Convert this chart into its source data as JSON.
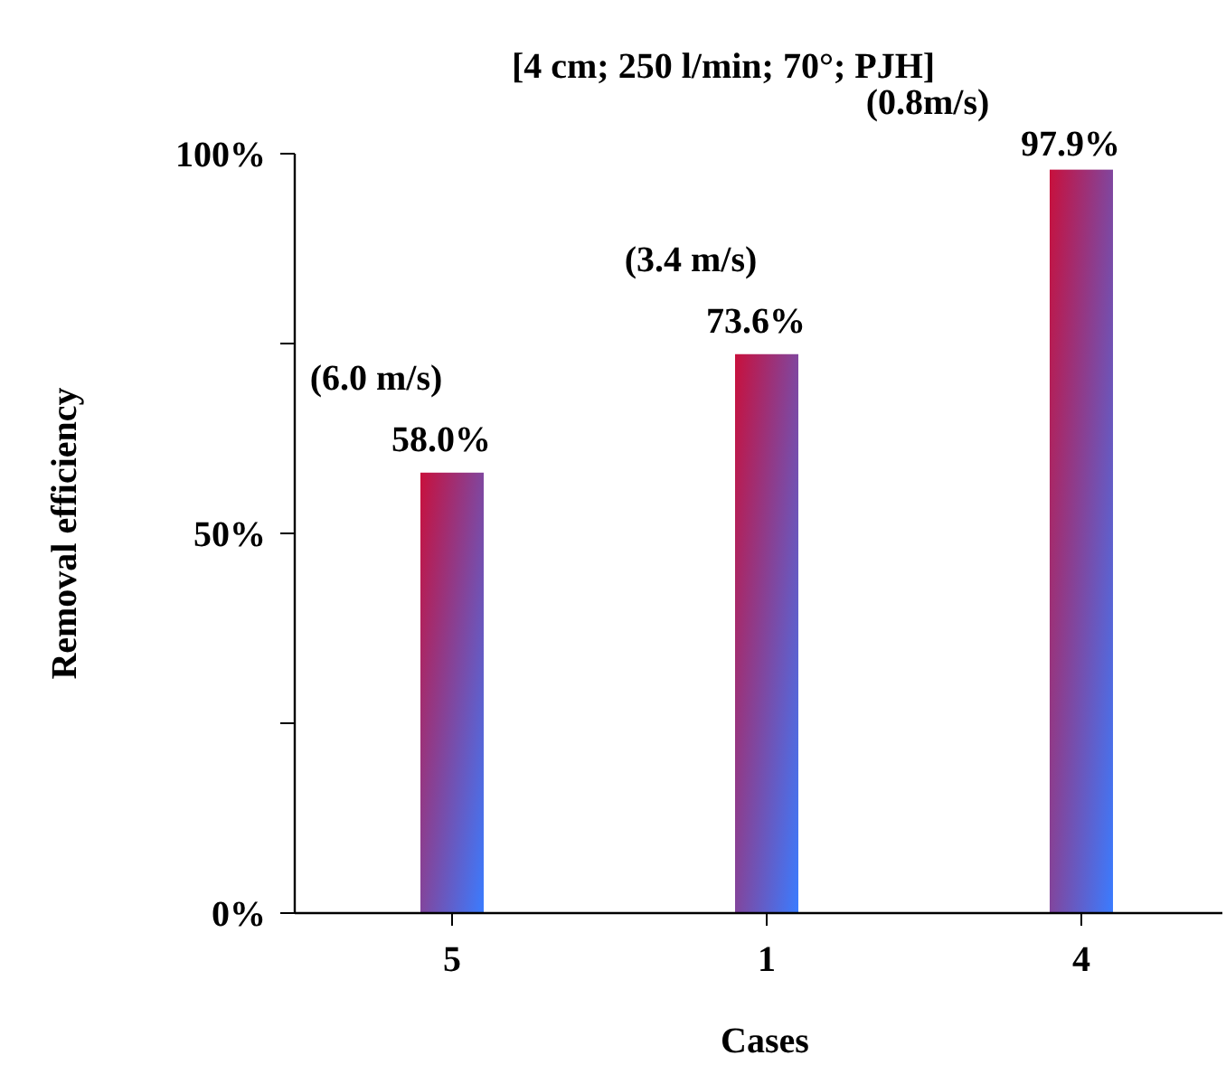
{
  "chart_data": {
    "type": "bar",
    "title": "[4 cm; 250 l/min; 70°;  PJH]",
    "xlabel": "Cases",
    "ylabel": "Removal efficiency",
    "categories": [
      "5",
      "1",
      "4"
    ],
    "values": [
      58.0,
      73.6,
      97.9
    ],
    "color": "#c8103c",
    "value_labels": [
      "58.0%",
      "73.6%",
      "97.9%"
    ],
    "annotations": [
      {
        "text": "(6.0 m/s)",
        "x": "5",
        "y": 58.0
      },
      {
        "text": "(3.4 m/s)",
        "x": "1",
        "y": 73.6
      },
      {
        "text": "(0.8m/s)",
        "x": "4",
        "y": 97.9
      }
    ],
    "ylim": [
      0,
      100
    ],
    "yticks": [
      {
        "value": 0,
        "label": "0%"
      },
      {
        "value": 25,
        "label": null
      },
      {
        "value": 50,
        "label": "50%"
      },
      {
        "value": 75,
        "label": null
      },
      {
        "value": 100,
        "label": "100%"
      }
    ],
    "grid": false
  }
}
